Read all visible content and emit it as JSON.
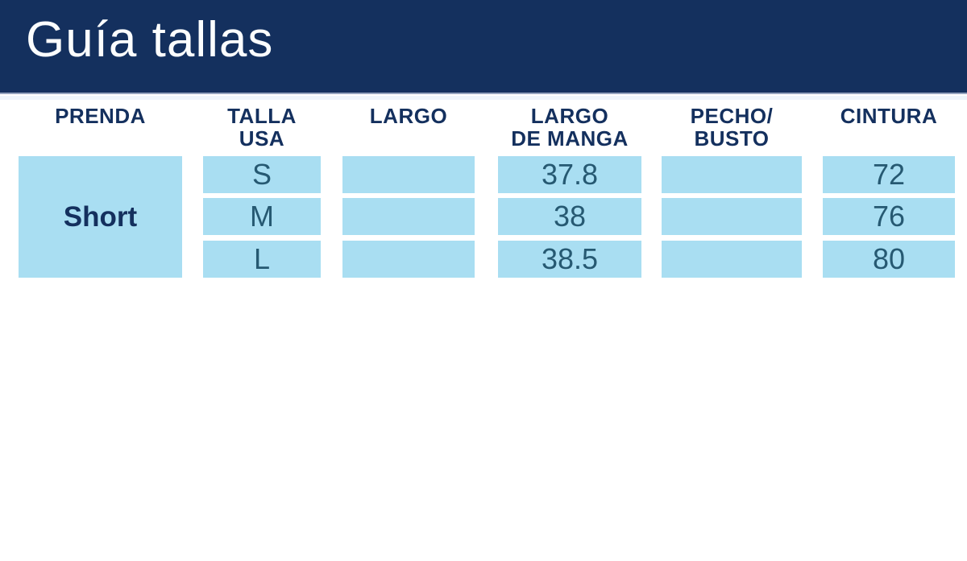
{
  "colors": {
    "navy": "#14305e",
    "cell-blue": "#a9def2",
    "cell-text": "#265972",
    "title-text": "#fbfdfe"
  },
  "chart_data": {
    "type": "table",
    "title": "Guía tallas",
    "columns": [
      "PRENDA",
      "TALLA\nUSA",
      "LARGO",
      "LARGO\nDE MANGA",
      "PECHO/\nBUSTO",
      "CINTURA"
    ],
    "garment": "Short",
    "rows": [
      {
        "talla_usa": "S",
        "largo": "",
        "largo_de_manga": "37.8",
        "pecho_busto": "",
        "cintura": "72"
      },
      {
        "talla_usa": "M",
        "largo": "",
        "largo_de_manga": "38",
        "pecho_busto": "",
        "cintura": "76"
      },
      {
        "talla_usa": "L",
        "largo": "",
        "largo_de_manga": "38.5",
        "pecho_busto": "",
        "cintura": "80"
      }
    ]
  }
}
